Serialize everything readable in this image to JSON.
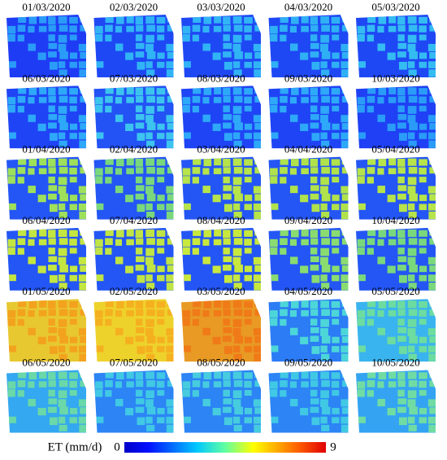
{
  "panels": [
    {
      "date": "01/03/2020",
      "color": "#1f3cf5",
      "field_color": "#2a9cf8"
    },
    {
      "date": "02/03/2020",
      "color": "#1f48f5",
      "field_color": "#31b4f5"
    },
    {
      "date": "03/03/2020",
      "color": "#1f48f5",
      "field_color": "#31b4f5"
    },
    {
      "date": "04/03/2020",
      "color": "#1f48f5",
      "field_color": "#2fb0f5"
    },
    {
      "date": "05/03/2020",
      "color": "#1f48f5",
      "field_color": "#34bcf2"
    },
    {
      "date": "06/03/2020",
      "color": "#1f44f5",
      "field_color": "#2ea8f8"
    },
    {
      "date": "07/03/2020",
      "color": "#2352f5",
      "field_color": "#3cc4ee"
    },
    {
      "date": "08/03/2020",
      "color": "#1f44f5",
      "field_color": "#2ea8f8"
    },
    {
      "date": "09/03/2020",
      "color": "#1f44f5",
      "field_color": "#2ea8f8"
    },
    {
      "date": "10/03/2020",
      "color": "#1f40f5",
      "field_color": "#2a9cf8"
    },
    {
      "date": "01/04/2020",
      "color": "#2456f5",
      "field_color": "#9ee05a"
    },
    {
      "date": "02/04/2020",
      "color": "#2456f5",
      "field_color": "#7ad87c"
    },
    {
      "date": "03/04/2020",
      "color": "#2456f5",
      "field_color": "#b6e44a"
    },
    {
      "date": "04/04/2020",
      "color": "#2456f5",
      "field_color": "#b0e24c"
    },
    {
      "date": "05/04/2020",
      "color": "#2456f5",
      "field_color": "#b6e44a"
    },
    {
      "date": "06/04/2020",
      "color": "#2456f5",
      "field_color": "#c4e640"
    },
    {
      "date": "07/04/2020",
      "color": "#2456f5",
      "field_color": "#c0e444"
    },
    {
      "date": "08/04/2020",
      "color": "#2456f5",
      "field_color": "#c8e83e"
    },
    {
      "date": "09/04/2020",
      "color": "#2456f5",
      "field_color": "#8adc70"
    },
    {
      "date": "10/04/2020",
      "color": "#2456f5",
      "field_color": "#7ad87c"
    },
    {
      "date": "01/05/2020",
      "color": "#e8c830",
      "field_color": "#f3a21e"
    },
    {
      "date": "02/05/2020",
      "color": "#eed22c",
      "field_color": "#f5b020"
    },
    {
      "date": "03/05/2020",
      "color": "#e89a24",
      "field_color": "#f07a18"
    },
    {
      "date": "04/05/2020",
      "color": "#2c7cf5",
      "field_color": "#4cd6d8"
    },
    {
      "date": "05/05/2020",
      "color": "#3ab4ee",
      "field_color": "#6cdca0"
    },
    {
      "date": "06/05/2020",
      "color": "#34a8f0",
      "field_color": "#6ad8a8"
    },
    {
      "date": "07/05/2020",
      "color": "#2c84f5",
      "field_color": "#40c8e4"
    },
    {
      "date": "08/05/2020",
      "color": "#2c84f5",
      "field_color": "#46ccde"
    },
    {
      "date": "09/05/2020",
      "color": "#2c84f5",
      "field_color": "#40c8e4"
    },
    {
      "date": "10/05/2020",
      "color": "#34a4f2",
      "field_color": "#70dca4"
    }
  ],
  "colorbar": {
    "label": "ET (mm/d)",
    "min": 0,
    "max": 9
  }
}
